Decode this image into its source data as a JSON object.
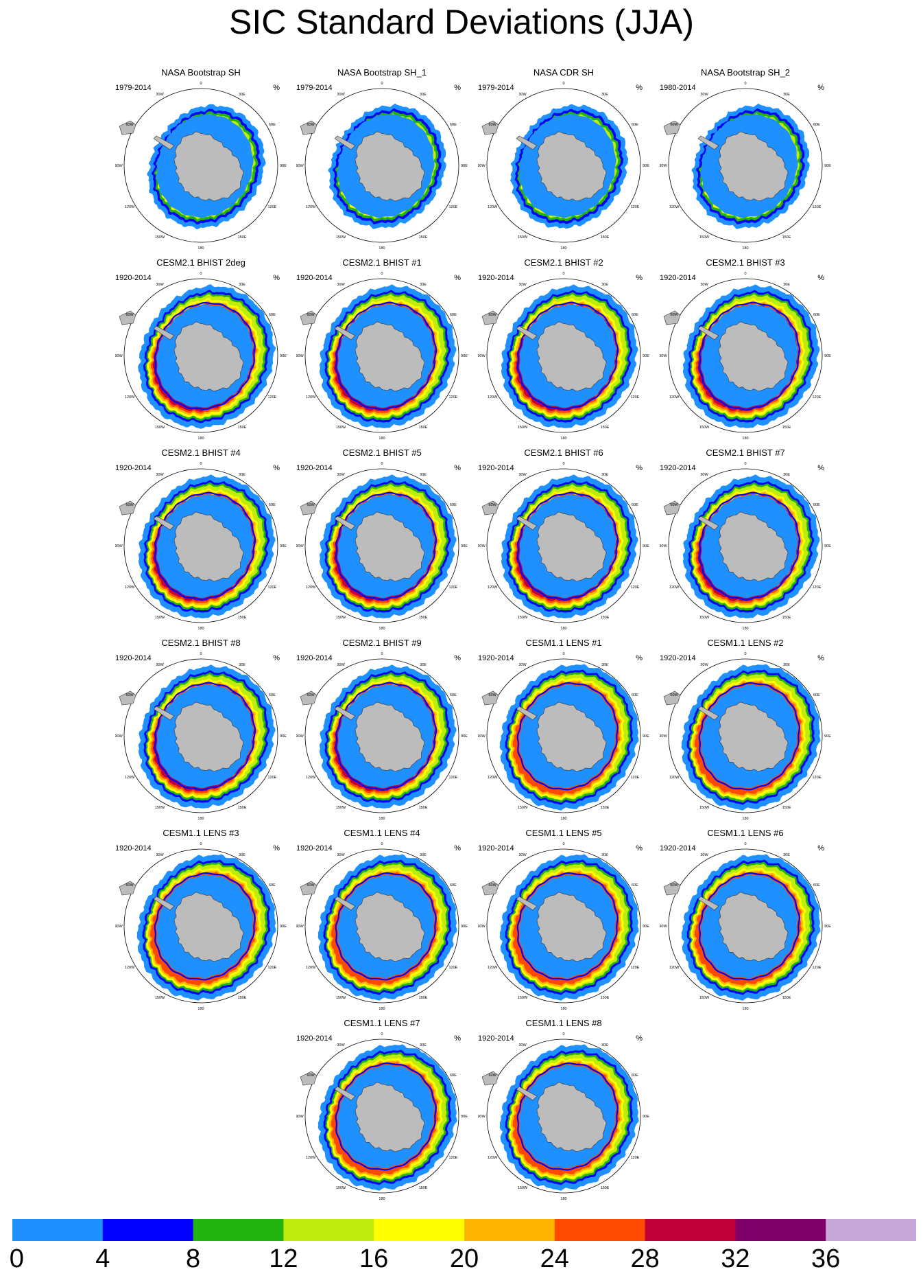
{
  "title": "SIC Standard Deviations (JJA)",
  "units": "%",
  "map": {
    "projection": "south polar stereographic",
    "lon_labels": [
      "0",
      "30E",
      "60E",
      "90E",
      "120E",
      "150E",
      "180",
      "150W",
      "120W",
      "90W",
      "60W",
      "30W"
    ],
    "land_color": "#bcbcbc"
  },
  "panels": [
    {
      "title": "NASA Bootstrap SH",
      "years": "1979-2014",
      "style": "obs"
    },
    {
      "title": "NASA Bootstrap SH_1",
      "years": "1979-2014",
      "style": "obs"
    },
    {
      "title": "NASA CDR SH",
      "years": "1979-2014",
      "style": "obs"
    },
    {
      "title": "NASA Bootstrap SH_2",
      "years": "1980-2014",
      "style": "obs"
    },
    {
      "title": "CESM2.1 BHIST 2deg",
      "years": "1920-2014",
      "style": "cesm2"
    },
    {
      "title": "CESM2.1 BHIST #1",
      "years": "1920-2014",
      "style": "cesm2"
    },
    {
      "title": "CESM2.1 BHIST #2",
      "years": "1920-2014",
      "style": "cesm2"
    },
    {
      "title": "CESM2.1 BHIST #3",
      "years": "1920-2014",
      "style": "cesm2"
    },
    {
      "title": "CESM2.1 BHIST #4",
      "years": "1920-2014",
      "style": "cesm2"
    },
    {
      "title": "CESM2.1 BHIST #5",
      "years": "1920-2014",
      "style": "cesm2"
    },
    {
      "title": "CESM2.1 BHIST #6",
      "years": "1920-2014",
      "style": "cesm2"
    },
    {
      "title": "CESM2.1 BHIST #7",
      "years": "1920-2014",
      "style": "cesm2"
    },
    {
      "title": "CESM2.1 BHIST #8",
      "years": "1920-2014",
      "style": "cesm2"
    },
    {
      "title": "CESM2.1 BHIST #9",
      "years": "1920-2014",
      "style": "cesm2"
    },
    {
      "title": "CESM1.1 LENS #1",
      "years": "1920-2014",
      "style": "cesm1"
    },
    {
      "title": "CESM1.1 LENS #2",
      "years": "1920-2014",
      "style": "cesm1"
    },
    {
      "title": "CESM1.1 LENS #3",
      "years": "1920-2014",
      "style": "cesm1"
    },
    {
      "title": "CESM1.1 LENS #4",
      "years": "1920-2014",
      "style": "cesm1"
    },
    {
      "title": "CESM1.1 LENS #5",
      "years": "1920-2014",
      "style": "cesm1"
    },
    {
      "title": "CESM1.1 LENS #6",
      "years": "1920-2014",
      "style": "cesm1"
    },
    {
      "title": "CESM1.1 LENS #7",
      "years": "1920-2014",
      "style": "cesm1"
    },
    {
      "title": "CESM1.1 LENS #8",
      "years": "1920-2014",
      "style": "cesm1"
    }
  ],
  "colorbar": {
    "bins": [
      {
        "from": 0,
        "to": 4,
        "color": "#1e90ff"
      },
      {
        "from": 4,
        "to": 8,
        "color": "#0000ff"
      },
      {
        "from": 8,
        "to": 12,
        "color": "#22b30f"
      },
      {
        "from": 12,
        "to": 16,
        "color": "#bfec0c"
      },
      {
        "from": 16,
        "to": 20,
        "color": "#ffff00"
      },
      {
        "from": 20,
        "to": 24,
        "color": "#ffb400"
      },
      {
        "from": 24,
        "to": 28,
        "color": "#ff4a00"
      },
      {
        "from": 28,
        "to": 32,
        "color": "#c0003a"
      },
      {
        "from": 32,
        "to": 36,
        "color": "#7e0068"
      },
      {
        "from": 36,
        "to": 40,
        "color": "#c8a8d8"
      }
    ],
    "labels": [
      "0",
      "4",
      "8",
      "12",
      "16",
      "20",
      "24",
      "28",
      "32",
      "36"
    ]
  }
}
